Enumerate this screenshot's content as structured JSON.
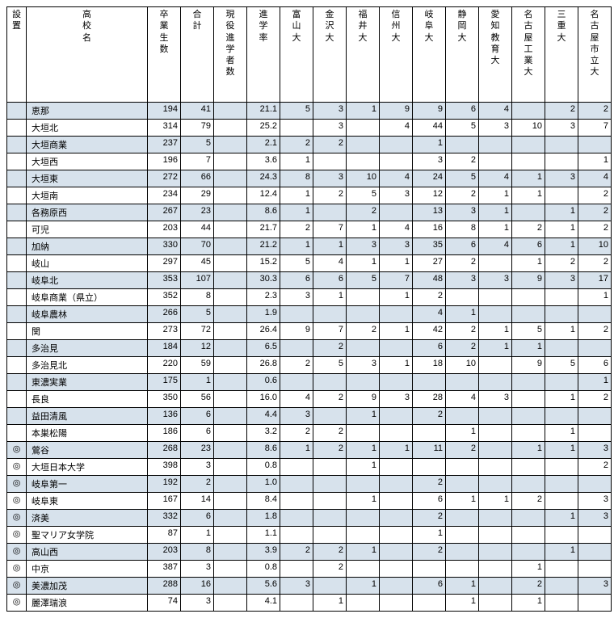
{
  "columns": [
    {
      "key": "mark",
      "label": "設置",
      "cls": "col-mark"
    },
    {
      "key": "name",
      "label": "高校名",
      "cls": "col-name"
    },
    {
      "key": "grad",
      "label": "卒業生数",
      "cls": "col-num"
    },
    {
      "key": "total",
      "label": "合計",
      "cls": "col-num"
    },
    {
      "key": "active",
      "label": "現役進学者数",
      "cls": "col-num"
    },
    {
      "key": "rate",
      "label": "進学率",
      "cls": "col-num"
    },
    {
      "key": "toyama",
      "label": "富山大",
      "cls": "col-num"
    },
    {
      "key": "kanazawa",
      "label": "金沢大",
      "cls": "col-num"
    },
    {
      "key": "fukui",
      "label": "福井大",
      "cls": "col-num"
    },
    {
      "key": "shinshu",
      "label": "信州大",
      "cls": "col-num"
    },
    {
      "key": "gifu",
      "label": "岐阜大",
      "cls": "col-num"
    },
    {
      "key": "shizuoka",
      "label": "静岡大",
      "cls": "col-num"
    },
    {
      "key": "aichikyoiku",
      "label": "愛知教育大",
      "cls": "col-num"
    },
    {
      "key": "nagoyakogyo",
      "label": "名古屋工業大",
      "cls": "col-num"
    },
    {
      "key": "mie",
      "label": "三重大",
      "cls": "col-num"
    },
    {
      "key": "nagoyashi",
      "label": "名古屋市立大",
      "cls": "col-num"
    }
  ],
  "rows": [
    {
      "mark": "",
      "name": "恵那",
      "grad": "194",
      "total": "41",
      "active": "",
      "rate": "21.1",
      "toyama": "5",
      "kanazawa": "3",
      "fukui": "1",
      "shinshu": "9",
      "gifu": "9",
      "shizuoka": "6",
      "aichikyoiku": "4",
      "nagoyakogyo": "",
      "mie": "2",
      "nagoyashi": "2"
    },
    {
      "mark": "",
      "name": "大垣北",
      "grad": "314",
      "total": "79",
      "active": "",
      "rate": "25.2",
      "toyama": "",
      "kanazawa": "3",
      "fukui": "",
      "shinshu": "4",
      "gifu": "44",
      "shizuoka": "5",
      "aichikyoiku": "3",
      "nagoyakogyo": "10",
      "mie": "3",
      "nagoyashi": "7"
    },
    {
      "mark": "",
      "name": "大垣商業",
      "grad": "237",
      "total": "5",
      "active": "",
      "rate": "2.1",
      "toyama": "2",
      "kanazawa": "2",
      "fukui": "",
      "shinshu": "",
      "gifu": "1",
      "shizuoka": "",
      "aichikyoiku": "",
      "nagoyakogyo": "",
      "mie": "",
      "nagoyashi": ""
    },
    {
      "mark": "",
      "name": "大垣西",
      "grad": "196",
      "total": "7",
      "active": "",
      "rate": "3.6",
      "toyama": "1",
      "kanazawa": "",
      "fukui": "",
      "shinshu": "",
      "gifu": "3",
      "shizuoka": "2",
      "aichikyoiku": "",
      "nagoyakogyo": "",
      "mie": "",
      "nagoyashi": "1"
    },
    {
      "mark": "",
      "name": "大垣東",
      "grad": "272",
      "total": "66",
      "active": "",
      "rate": "24.3",
      "toyama": "8",
      "kanazawa": "3",
      "fukui": "10",
      "shinshu": "4",
      "gifu": "24",
      "shizuoka": "5",
      "aichikyoiku": "4",
      "nagoyakogyo": "1",
      "mie": "3",
      "nagoyashi": "4"
    },
    {
      "mark": "",
      "name": "大垣南",
      "grad": "234",
      "total": "29",
      "active": "",
      "rate": "12.4",
      "toyama": "1",
      "kanazawa": "2",
      "fukui": "5",
      "shinshu": "3",
      "gifu": "12",
      "shizuoka": "2",
      "aichikyoiku": "1",
      "nagoyakogyo": "1",
      "mie": "",
      "nagoyashi": "2"
    },
    {
      "mark": "",
      "name": "各務原西",
      "grad": "267",
      "total": "23",
      "active": "",
      "rate": "8.6",
      "toyama": "1",
      "kanazawa": "",
      "fukui": "2",
      "shinshu": "",
      "gifu": "13",
      "shizuoka": "3",
      "aichikyoiku": "1",
      "nagoyakogyo": "",
      "mie": "1",
      "nagoyashi": "2"
    },
    {
      "mark": "",
      "name": "可児",
      "grad": "203",
      "total": "44",
      "active": "",
      "rate": "21.7",
      "toyama": "2",
      "kanazawa": "7",
      "fukui": "1",
      "shinshu": "4",
      "gifu": "16",
      "shizuoka": "8",
      "aichikyoiku": "1",
      "nagoyakogyo": "2",
      "mie": "1",
      "nagoyashi": "2"
    },
    {
      "mark": "",
      "name": "加納",
      "grad": "330",
      "total": "70",
      "active": "",
      "rate": "21.2",
      "toyama": "1",
      "kanazawa": "1",
      "fukui": "3",
      "shinshu": "3",
      "gifu": "35",
      "shizuoka": "6",
      "aichikyoiku": "4",
      "nagoyakogyo": "6",
      "mie": "1",
      "nagoyashi": "10"
    },
    {
      "mark": "",
      "name": "岐山",
      "grad": "297",
      "total": "45",
      "active": "",
      "rate": "15.2",
      "toyama": "5",
      "kanazawa": "4",
      "fukui": "1",
      "shinshu": "1",
      "gifu": "27",
      "shizuoka": "2",
      "aichikyoiku": "",
      "nagoyakogyo": "1",
      "mie": "2",
      "nagoyashi": "2"
    },
    {
      "mark": "",
      "name": "岐阜北",
      "grad": "353",
      "total": "107",
      "active": "",
      "rate": "30.3",
      "toyama": "6",
      "kanazawa": "6",
      "fukui": "5",
      "shinshu": "7",
      "gifu": "48",
      "shizuoka": "3",
      "aichikyoiku": "3",
      "nagoyakogyo": "9",
      "mie": "3",
      "nagoyashi": "17"
    },
    {
      "mark": "",
      "name": "岐阜商業（県立）",
      "grad": "352",
      "total": "8",
      "active": "",
      "rate": "2.3",
      "toyama": "3",
      "kanazawa": "1",
      "fukui": "",
      "shinshu": "1",
      "gifu": "2",
      "shizuoka": "",
      "aichikyoiku": "",
      "nagoyakogyo": "",
      "mie": "",
      "nagoyashi": "1"
    },
    {
      "mark": "",
      "name": "岐阜農林",
      "grad": "266",
      "total": "5",
      "active": "",
      "rate": "1.9",
      "toyama": "",
      "kanazawa": "",
      "fukui": "",
      "shinshu": "",
      "gifu": "4",
      "shizuoka": "1",
      "aichikyoiku": "",
      "nagoyakogyo": "",
      "mie": "",
      "nagoyashi": ""
    },
    {
      "mark": "",
      "name": "関",
      "grad": "273",
      "total": "72",
      "active": "",
      "rate": "26.4",
      "toyama": "9",
      "kanazawa": "7",
      "fukui": "2",
      "shinshu": "1",
      "gifu": "42",
      "shizuoka": "2",
      "aichikyoiku": "1",
      "nagoyakogyo": "5",
      "mie": "1",
      "nagoyashi": "2"
    },
    {
      "mark": "",
      "name": "多治見",
      "grad": "184",
      "total": "12",
      "active": "",
      "rate": "6.5",
      "toyama": "",
      "kanazawa": "2",
      "fukui": "",
      "shinshu": "",
      "gifu": "6",
      "shizuoka": "2",
      "aichikyoiku": "1",
      "nagoyakogyo": "1",
      "mie": "",
      "nagoyashi": ""
    },
    {
      "mark": "",
      "name": "多治見北",
      "grad": "220",
      "total": "59",
      "active": "",
      "rate": "26.8",
      "toyama": "2",
      "kanazawa": "5",
      "fukui": "3",
      "shinshu": "1",
      "gifu": "18",
      "shizuoka": "10",
      "aichikyoiku": "",
      "nagoyakogyo": "9",
      "mie": "5",
      "nagoyashi": "6"
    },
    {
      "mark": "",
      "name": "東濃実業",
      "grad": "175",
      "total": "1",
      "active": "",
      "rate": "0.6",
      "toyama": "",
      "kanazawa": "",
      "fukui": "",
      "shinshu": "",
      "gifu": "",
      "shizuoka": "",
      "aichikyoiku": "",
      "nagoyakogyo": "",
      "mie": "",
      "nagoyashi": "1"
    },
    {
      "mark": "",
      "name": "長良",
      "grad": "350",
      "total": "56",
      "active": "",
      "rate": "16.0",
      "toyama": "4",
      "kanazawa": "2",
      "fukui": "9",
      "shinshu": "3",
      "gifu": "28",
      "shizuoka": "4",
      "aichikyoiku": "3",
      "nagoyakogyo": "",
      "mie": "1",
      "nagoyashi": "2"
    },
    {
      "mark": "",
      "name": "益田清風",
      "grad": "136",
      "total": "6",
      "active": "",
      "rate": "4.4",
      "toyama": "3",
      "kanazawa": "",
      "fukui": "1",
      "shinshu": "",
      "gifu": "2",
      "shizuoka": "",
      "aichikyoiku": "",
      "nagoyakogyo": "",
      "mie": "",
      "nagoyashi": ""
    },
    {
      "mark": "",
      "name": "本巣松陽",
      "grad": "186",
      "total": "6",
      "active": "",
      "rate": "3.2",
      "toyama": "2",
      "kanazawa": "2",
      "fukui": "",
      "shinshu": "",
      "gifu": "",
      "shizuoka": "1",
      "aichikyoiku": "",
      "nagoyakogyo": "",
      "mie": "1",
      "nagoyashi": ""
    },
    {
      "mark": "◎",
      "name": "鶯谷",
      "grad": "268",
      "total": "23",
      "active": "",
      "rate": "8.6",
      "toyama": "1",
      "kanazawa": "2",
      "fukui": "1",
      "shinshu": "1",
      "gifu": "11",
      "shizuoka": "2",
      "aichikyoiku": "",
      "nagoyakogyo": "1",
      "mie": "1",
      "nagoyashi": "3"
    },
    {
      "mark": "◎",
      "name": "大垣日本大学",
      "grad": "398",
      "total": "3",
      "active": "",
      "rate": "0.8",
      "toyama": "",
      "kanazawa": "",
      "fukui": "1",
      "shinshu": "",
      "gifu": "",
      "shizuoka": "",
      "aichikyoiku": "",
      "nagoyakogyo": "",
      "mie": "",
      "nagoyashi": "2"
    },
    {
      "mark": "◎",
      "name": "岐阜第一",
      "grad": "192",
      "total": "2",
      "active": "",
      "rate": "1.0",
      "toyama": "",
      "kanazawa": "",
      "fukui": "",
      "shinshu": "",
      "gifu": "2",
      "shizuoka": "",
      "aichikyoiku": "",
      "nagoyakogyo": "",
      "mie": "",
      "nagoyashi": ""
    },
    {
      "mark": "◎",
      "name": "岐阜東",
      "grad": "167",
      "total": "14",
      "active": "",
      "rate": "8.4",
      "toyama": "",
      "kanazawa": "",
      "fukui": "1",
      "shinshu": "",
      "gifu": "6",
      "shizuoka": "1",
      "aichikyoiku": "1",
      "nagoyakogyo": "2",
      "mie": "",
      "nagoyashi": "3"
    },
    {
      "mark": "◎",
      "name": "済美",
      "grad": "332",
      "total": "6",
      "active": "",
      "rate": "1.8",
      "toyama": "",
      "kanazawa": "",
      "fukui": "",
      "shinshu": "",
      "gifu": "2",
      "shizuoka": "",
      "aichikyoiku": "",
      "nagoyakogyo": "",
      "mie": "1",
      "nagoyashi": "3"
    },
    {
      "mark": "◎",
      "name": "聖マリア女学院",
      "grad": "87",
      "total": "1",
      "active": "",
      "rate": "1.1",
      "toyama": "",
      "kanazawa": "",
      "fukui": "",
      "shinshu": "",
      "gifu": "1",
      "shizuoka": "",
      "aichikyoiku": "",
      "nagoyakogyo": "",
      "mie": "",
      "nagoyashi": ""
    },
    {
      "mark": "◎",
      "name": "高山西",
      "grad": "203",
      "total": "8",
      "active": "",
      "rate": "3.9",
      "toyama": "2",
      "kanazawa": "2",
      "fukui": "1",
      "shinshu": "",
      "gifu": "2",
      "shizuoka": "",
      "aichikyoiku": "",
      "nagoyakogyo": "",
      "mie": "1",
      "nagoyashi": ""
    },
    {
      "mark": "◎",
      "name": "中京",
      "grad": "387",
      "total": "3",
      "active": "",
      "rate": "0.8",
      "toyama": "",
      "kanazawa": "2",
      "fukui": "",
      "shinshu": "",
      "gifu": "",
      "shizuoka": "",
      "aichikyoiku": "",
      "nagoyakogyo": "1",
      "mie": "",
      "nagoyashi": ""
    },
    {
      "mark": "◎",
      "name": "美濃加茂",
      "grad": "288",
      "total": "16",
      "active": "",
      "rate": "5.6",
      "toyama": "3",
      "kanazawa": "",
      "fukui": "1",
      "shinshu": "",
      "gifu": "6",
      "shizuoka": "1",
      "aichikyoiku": "",
      "nagoyakogyo": "2",
      "mie": "",
      "nagoyashi": "3"
    },
    {
      "mark": "◎",
      "name": "麗澤瑞浪",
      "grad": "74",
      "total": "3",
      "active": "",
      "rate": "4.1",
      "toyama": "",
      "kanazawa": "1",
      "fukui": "",
      "shinshu": "",
      "gifu": "",
      "shizuoka": "1",
      "aichikyoiku": "",
      "nagoyakogyo": "1",
      "mie": "",
      "nagoyashi": ""
    }
  ]
}
